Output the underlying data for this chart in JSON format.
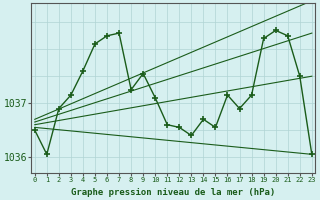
{
  "title": "Graphe pression niveau de la mer (hPa)",
  "background_color": "#d6f0f0",
  "plot_bg_color": "#d6f0f0",
  "line_color": "#1a5c1a",
  "grid_color": "#b0d4d4",
  "axis_color": "#555555",
  "text_color": "#1a5c1a",
  "figsize": [
    3.2,
    2.0
  ],
  "dpi": 100,
  "hours": [
    0,
    1,
    2,
    3,
    4,
    5,
    6,
    7,
    8,
    9,
    10,
    11,
    12,
    13,
    14,
    15,
    16,
    17,
    18,
    19,
    20,
    21,
    22,
    23
  ],
  "main_pressure": [
    1036.5,
    1036.05,
    1036.9,
    1037.15,
    1037.6,
    1038.1,
    1038.25,
    1038.3,
    1037.25,
    1037.55,
    1037.1,
    1036.6,
    1036.55,
    1036.4,
    1036.7,
    1036.55,
    1037.15,
    1036.9,
    1037.15,
    1038.2,
    1038.35,
    1038.25,
    1037.5,
    1036.05
  ],
  "diag_lines": [
    {
      "x": [
        0,
        23
      ],
      "y": [
        1036.55,
        1036.05
      ]
    },
    {
      "x": [
        0,
        23
      ],
      "y": [
        1036.6,
        1037.5
      ]
    },
    {
      "x": [
        0,
        23
      ],
      "y": [
        1036.65,
        1038.3
      ]
    },
    {
      "x": [
        0,
        23
      ],
      "y": [
        1036.7,
        1038.9
      ]
    }
  ],
  "ylim_min": 1035.7,
  "ylim_max": 1038.85,
  "yticks": [
    1036,
    1037
  ],
  "xlim_min": -0.3,
  "xlim_max": 23.3
}
